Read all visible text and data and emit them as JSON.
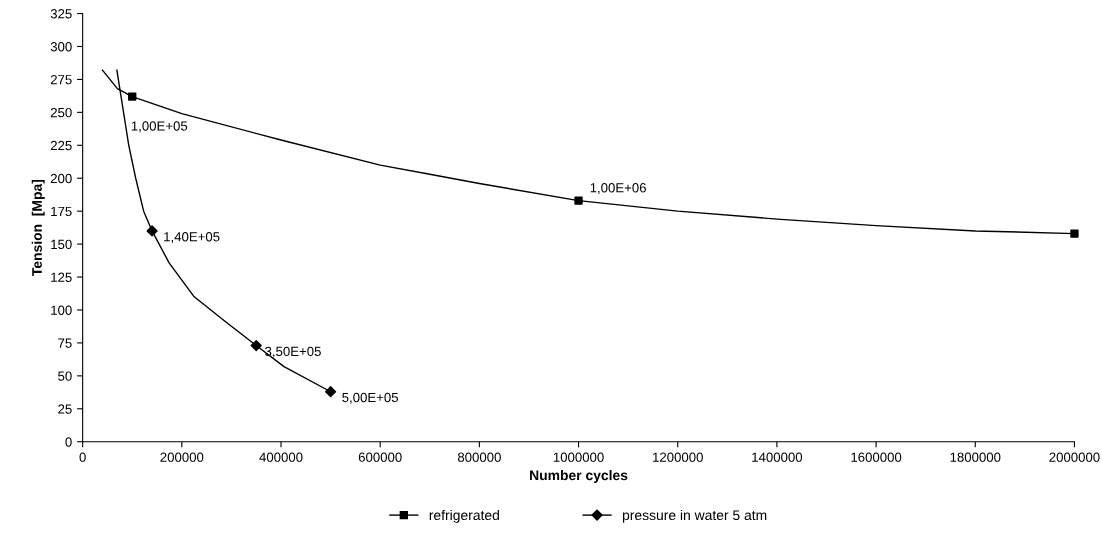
{
  "chart_data": {
    "type": "line",
    "xlabel": "Number cycles",
    "ylabel": "Tension  [Mpa]",
    "xlim": [
      0,
      2000000
    ],
    "xticks": [
      0,
      200000,
      400000,
      600000,
      800000,
      1000000,
      1200000,
      1400000,
      1600000,
      1800000,
      2000000
    ],
    "ylim": [
      0,
      325
    ],
    "yticks": [
      0,
      25,
      50,
      75,
      100,
      125,
      150,
      175,
      200,
      225,
      250,
      275,
      300,
      325
    ],
    "grid": false,
    "legend": "bottom",
    "series": [
      {
        "color": "#000000",
        "marker": "none",
        "x": [
          40000,
          70000,
          100000,
          200000,
          400000,
          600000,
          700000,
          800000,
          1000000,
          1200000,
          1400000,
          1600000,
          1800000,
          2000000
        ],
        "values": [
          282,
          268,
          262,
          249,
          229,
          210,
          203,
          196,
          183,
          175,
          169,
          164,
          160,
          158
        ]
      },
      {
        "color": "#000000",
        "marker": "none",
        "x": [
          69000,
          93000,
          107000,
          123000,
          140000,
          174000,
          225000,
          285000,
          350000,
          406000,
          500000
        ],
        "values": [
          282,
          225,
          200,
          175,
          160,
          136,
          110,
          92,
          73,
          57,
          38
        ]
      },
      {
        "type": "scatter",
        "name": "refrigerated",
        "color": "#000000",
        "marker": "square",
        "x": [
          100000,
          1000000,
          2000000
        ],
        "values": [
          262,
          183,
          158
        ]
      },
      {
        "type": "scatter",
        "name": "pressure in water 5 atm",
        "color": "#000000",
        "marker": "diamond",
        "x": [
          140000,
          350000,
          500000
        ],
        "values": [
          160,
          73,
          38
        ]
      }
    ],
    "annotations": [
      {
        "text": "1,00E+05",
        "x": 100000,
        "y": 262
      },
      {
        "text": "1,00E+06",
        "x": 1000000,
        "y": 183
      },
      {
        "text": "1,40E+05",
        "x": 140000,
        "y": 160
      },
      {
        "text": "3,50E+05",
        "x": 350000,
        "y": 73
      },
      {
        "text": "5,00E+05",
        "x": 500000,
        "y": 38
      }
    ]
  }
}
